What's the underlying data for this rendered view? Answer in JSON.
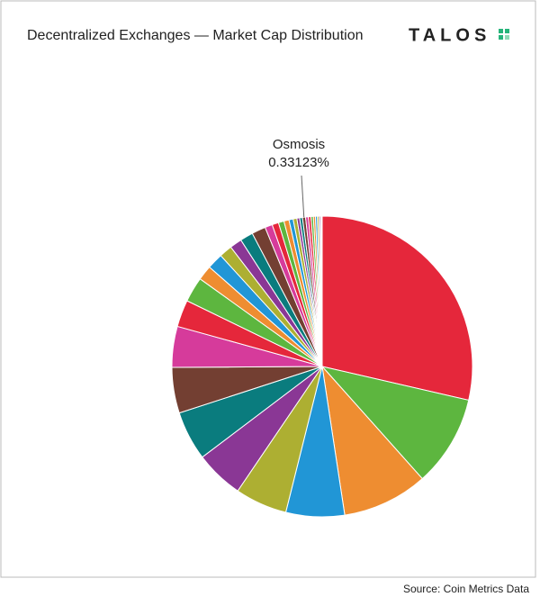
{
  "chart_data": {
    "type": "pie",
    "title": "Decentralized Exchanges — Market Cap Distribution",
    "brand": "TALOS",
    "source": "Source: Coin Metrics Data",
    "categories": [
      null,
      null,
      null,
      null,
      null,
      null,
      null,
      null,
      null,
      null,
      null,
      null,
      null,
      null,
      null,
      null,
      null,
      null,
      null,
      null,
      null,
      null,
      null,
      null,
      null,
      "Osmosis",
      null,
      null,
      null,
      null,
      null,
      null,
      null,
      null,
      null
    ],
    "values": [
      28.6,
      9.8,
      9.2,
      6.3,
      5.6,
      5.2,
      5.3,
      4.9,
      4.4,
      2.9,
      2.7,
      1.6,
      1.7,
      1.4,
      1.3,
      1.4,
      1.5,
      0.8,
      0.7,
      0.6,
      0.55,
      0.45,
      0.4,
      0.3,
      0.3,
      0.33123,
      0.3,
      0.28,
      0.25,
      0.22,
      0.2,
      0.18,
      0.15,
      0.1,
      0.09
    ],
    "value_labels": [
      null,
      null,
      null,
      null,
      null,
      null,
      null,
      null,
      null,
      null,
      null,
      null,
      null,
      null,
      null,
      null,
      null,
      null,
      null,
      null,
      null,
      null,
      null,
      null,
      null,
      "0.33123%",
      null,
      null,
      null,
      null,
      null,
      null,
      null,
      null,
      null
    ],
    "colors": [
      "#e5273b",
      "#5db63f",
      "#ee8d31",
      "#2196d6",
      "#adaf32",
      "#8a3795",
      "#0a7c7e",
      "#733f32",
      "#d63b9b"
    ]
  }
}
